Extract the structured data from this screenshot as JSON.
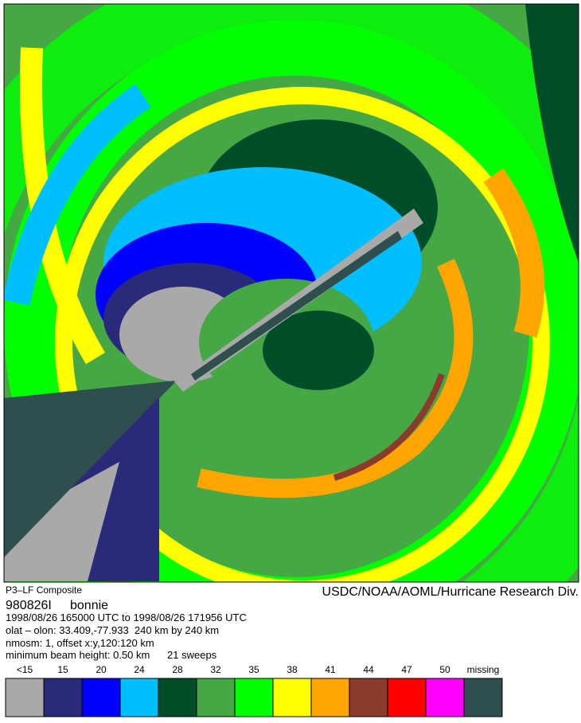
{
  "header": {
    "left": "P3–LF Composite",
    "right": "USDC/NOAA/AOML/Hurricane Research Div."
  },
  "flight": {
    "id": "980826I",
    "name": "bonnie"
  },
  "info": [
    "1998/08/26 165000 UTC to 1998/08/26 171956 UTC",
    "olat – olon: 33.409,-77.933  240 km by 240 km",
    "nmosm: 1, offset x:y,120:120 km",
    "minimum beam height: 0.50 km      21 sweeps"
  ],
  "legend": [
    {
      "label": "<15",
      "color": "#a9a9a9"
    },
    {
      "label": "15",
      "color": "#2a2a7a"
    },
    {
      "label": "20",
      "color": "#0000ff"
    },
    {
      "label": "24",
      "color": "#00bfff"
    },
    {
      "label": "28",
      "color": "#004d2a"
    },
    {
      "label": "32",
      "color": "#45a845"
    },
    {
      "label": "35",
      "color": "#00ff00"
    },
    {
      "label": "38",
      "color": "#ffff00"
    },
    {
      "label": "41",
      "color": "#ffa500"
    },
    {
      "label": "44",
      "color": "#8b3a2c"
    },
    {
      "label": "47",
      "color": "#ff0000"
    },
    {
      "label": "50",
      "color": "#ff00ff"
    },
    {
      "label": "missing",
      "color": "#2f4f4f"
    }
  ]
}
